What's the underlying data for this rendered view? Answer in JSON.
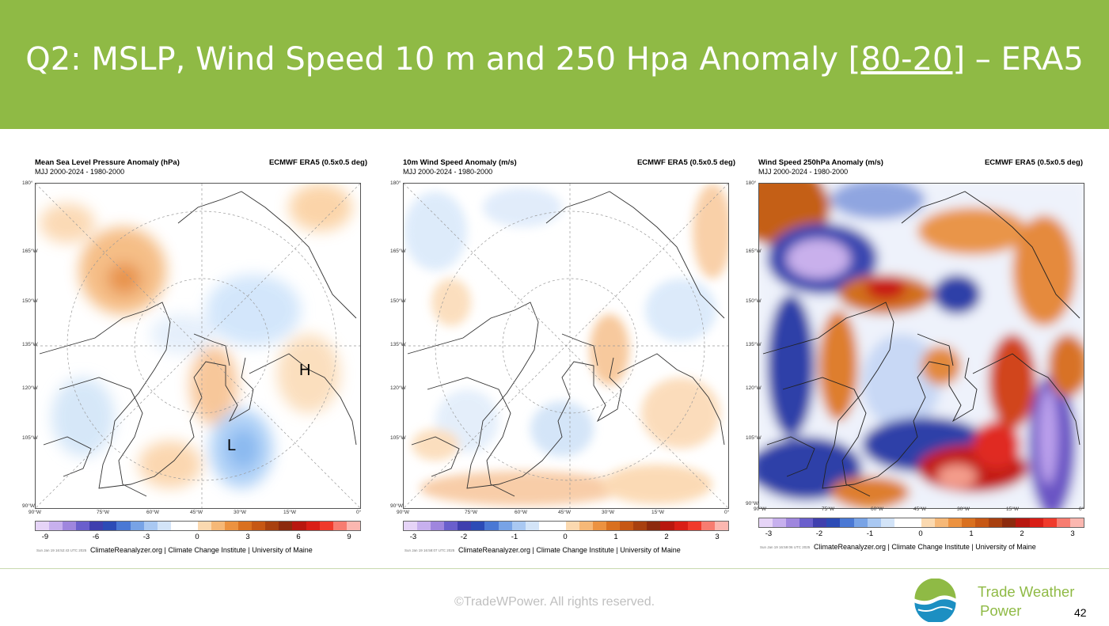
{
  "slide": {
    "title_pre": "Q2: MSLP, Wind Speed 10 m and 250 Hpa Anomaly ",
    "title_link": "[80-20",
    "title_post": "] – ERA5",
    "copyright": "©TradeWPower. All rights reserved.",
    "logo_line1": "Trade Weather",
    "logo_line2": "Power",
    "page_number": "42",
    "colors": {
      "header": "#8fba45",
      "logo_green": "#8fba45",
      "logo_blue": "#1c8fc2"
    }
  },
  "icons": {
    "logo": "trade-weather-power-logo-icon"
  },
  "panels": [
    {
      "title": "Mean Sea Level Pressure Anomaly (hPa)",
      "subtitle": "MJJ 2000-2024 - 1980-2000",
      "source": "ECMWF ERA5 (0.5x0.5 deg)",
      "colorbar_ticks": [
        "-9",
        "-6",
        "-3",
        "0",
        "3",
        "6",
        "9"
      ],
      "credit": "ClimateReanalyzer.org | Climate Change Institute | University of Maine",
      "stamp": "Sun Jan 19 16:52:43 UTC 2025",
      "markers": [
        "L",
        "H"
      ]
    },
    {
      "title": "10m Wind Speed Anomaly (m/s)",
      "subtitle": "MJJ 2000-2024 - 1980-2000",
      "source": "ECMWF ERA5 (0.5x0.5 deg)",
      "colorbar_ticks": [
        "-3",
        "-2",
        "-1",
        "0",
        "1",
        "2",
        "3"
      ],
      "credit": "ClimateReanalyzer.org | Climate Change Institute | University of Maine",
      "stamp": "Sun Jan 19 16:58:07 UTC 2025",
      "markers": []
    },
    {
      "title": "Wind Speed 250hPa Anomaly (m/s)",
      "subtitle": "MJJ 2000-2024 - 1980-2000",
      "source": "ECMWF ERA5 (0.5x0.5 deg)",
      "colorbar_ticks": [
        "-3",
        "-2",
        "-1",
        "0",
        "1",
        "2",
        "3"
      ],
      "credit": "ClimateReanalyzer.org | Climate Change Institute | University of Maine",
      "stamp": "Sun Jan 19 16:59:06 UTC 2025",
      "markers": []
    }
  ],
  "map_axes": {
    "y_labels": [
      "180°",
      "165°W",
      "150°W",
      "135°W",
      "120°W",
      "105°W",
      "90°W"
    ],
    "x_labels": [
      "90°W",
      "75°W",
      "60°W",
      "45°W",
      "30°W",
      "15°W",
      "0°"
    ]
  }
}
